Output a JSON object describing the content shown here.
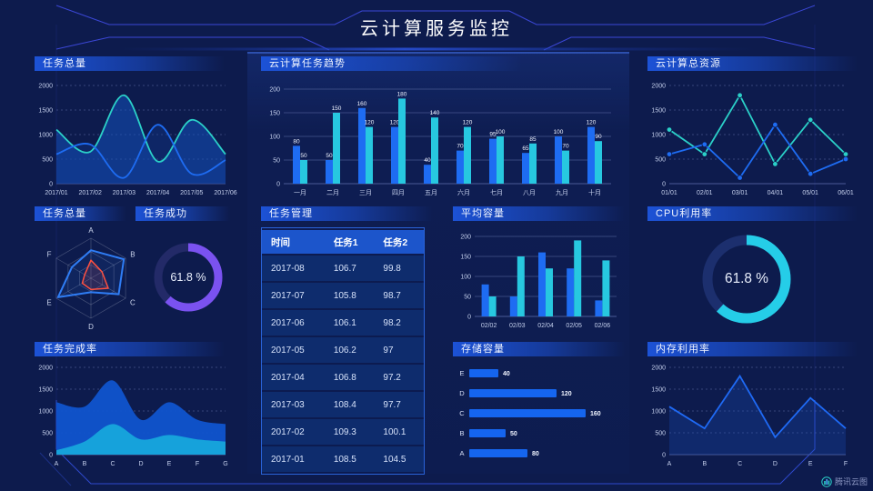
{
  "title": "云计算服务监控",
  "watermark": {
    "label": "腾讯云图"
  },
  "colors": {
    "background": "#0d1b4d",
    "header_bar": "#1c52d6",
    "blue": "#1e6cf2",
    "cyan": "#27c8e0",
    "teal": "#2bd0c8",
    "purple": "#7a52f0",
    "red": "#ff5040",
    "frame": "#3b47d6",
    "axis_text": "#c4cfec"
  },
  "panels": {
    "task_total": {
      "title": "任务总量"
    },
    "trend": {
      "title": "云计算任务趋势"
    },
    "resources": {
      "title": "云计算总资源"
    },
    "task_total_radar": {
      "title": "任务总量"
    },
    "task_success": {
      "title": "任务成功"
    },
    "task_mgmt": {
      "title": "任务管理"
    },
    "avg_capacity": {
      "title": "平均容量"
    },
    "cpu": {
      "title": "CPU利用率"
    },
    "completion": {
      "title": "任务完成率"
    },
    "storage": {
      "title": "存储容量"
    },
    "memory": {
      "title": "内存利用率"
    }
  },
  "chart_data": [
    {
      "id": "task-total-curve",
      "type": "area",
      "title": "任务总量",
      "smooth": true,
      "categories": [
        "2017/01",
        "2017/02",
        "2017/03",
        "2017/04",
        "2017/05",
        "2017/06"
      ],
      "series": [
        {
          "color": "#2bd0c8",
          "fill": "rgba(20,80,190,0.55)",
          "values": [
            1100,
            650,
            1800,
            450,
            1300,
            600
          ]
        },
        {
          "color": "#1e6cf2",
          "fill": "rgba(18,60,150,0.35)",
          "values": [
            600,
            800,
            120,
            1200,
            200,
            480
          ]
        }
      ],
      "ylim": [
        0,
        2000
      ],
      "yticks": [
        0,
        500,
        1000,
        1500,
        2000
      ],
      "grid": "dashed"
    },
    {
      "id": "trend-bars",
      "type": "bar",
      "title": "云计算任务趋势",
      "categories": [
        "一月",
        "二月",
        "三月",
        "四月",
        "五月",
        "六月",
        "七月",
        "八月",
        "九月",
        "十月"
      ],
      "series": [
        {
          "color": "#1e6cf2",
          "values": [
            80,
            50,
            160,
            120,
            40,
            70,
            95,
            65,
            100,
            120
          ]
        },
        {
          "color": "#27c8e0",
          "values": [
            50,
            150,
            120,
            180,
            140,
            120,
            100,
            85,
            70,
            90
          ]
        }
      ],
      "ylim": [
        0,
        200
      ],
      "yticks": [
        0,
        50,
        100,
        150,
        200
      ],
      "grid": "solid",
      "value_labels": true
    },
    {
      "id": "resource-lines",
      "type": "line",
      "title": "云计算总资源",
      "categories": [
        "01/01",
        "02/01",
        "03/01",
        "04/01",
        "05/01",
        "06/01"
      ],
      "series": [
        {
          "color": "#2bd0c8",
          "values": [
            1100,
            600,
            1800,
            400,
            1300,
            600
          ],
          "markers": true
        },
        {
          "color": "#1e6cf2",
          "values": [
            600,
            800,
            120,
            1200,
            200,
            500
          ],
          "markers": true
        }
      ],
      "ylim": [
        0,
        2000
      ],
      "yticks": [
        0,
        500,
        1000,
        1500,
        2000
      ],
      "grid": "dashed"
    },
    {
      "id": "task-radar",
      "type": "radar",
      "title": "任务总量",
      "categories": [
        "A",
        "B",
        "C",
        "D",
        "E",
        "F"
      ],
      "max": 100,
      "series": [
        {
          "color": "#2f7df5",
          "values": [
            70,
            95,
            80,
            35,
            95,
            55
          ]
        },
        {
          "color": "#ff5040",
          "values": [
            45,
            32,
            50,
            28,
            25,
            18
          ]
        }
      ]
    },
    {
      "id": "success-gauge",
      "type": "donut",
      "title": "任务成功",
      "value": 61.8,
      "display": "61.8 %",
      "color": "#7a52f0",
      "track": "#232a68"
    },
    {
      "id": "task-table",
      "type": "table",
      "title": "任务管理",
      "columns": [
        "时间",
        "任务1",
        "任务2"
      ],
      "rows": [
        [
          "2017-08",
          "106.7",
          "99.8"
        ],
        [
          "2017-07",
          "105.8",
          "98.7"
        ],
        [
          "2017-06",
          "106.1",
          "98.2"
        ],
        [
          "2017-05",
          "106.2",
          "97"
        ],
        [
          "2017-04",
          "106.8",
          "97.2"
        ],
        [
          "2017-03",
          "108.4",
          "97.7"
        ],
        [
          "2017-02",
          "109.3",
          "100.1"
        ],
        [
          "2017-01",
          "108.5",
          "104.5"
        ]
      ]
    },
    {
      "id": "avg-capacity-bars",
      "type": "bar",
      "title": "平均容量",
      "categories": [
        "02/02",
        "02/03",
        "02/04",
        "02/05",
        "02/06"
      ],
      "series": [
        {
          "color": "#1e6cf2",
          "values": [
            80,
            50,
            160,
            120,
            40
          ]
        },
        {
          "color": "#27c8e0",
          "values": [
            50,
            150,
            120,
            190,
            140
          ]
        }
      ],
      "ylim": [
        0,
        200
      ],
      "yticks": [
        0,
        50,
        100,
        150,
        200
      ],
      "grid": "solid",
      "value_labels": false
    },
    {
      "id": "cpu-gauge",
      "type": "donut",
      "title": "CPU利用率",
      "value": 61.8,
      "display": "61.8 %",
      "color": "#25cde8",
      "track": "#1c2f6e"
    },
    {
      "id": "completion-area",
      "type": "area",
      "title": "任务完成率",
      "smooth": true,
      "categories": [
        "A",
        "B",
        "C",
        "D",
        "E",
        "F",
        "G"
      ],
      "series": [
        {
          "color": "#1d66e0",
          "fill": "rgba(16,84,205,0.95)",
          "values": [
            1200,
            1100,
            1700,
            800,
            1200,
            800,
            700
          ]
        },
        {
          "color": "#1fb4e8",
          "fill": "rgba(23,166,220,0.95)",
          "values": [
            100,
            300,
            700,
            350,
            450,
            350,
            300
          ]
        }
      ],
      "ylim": [
        0,
        2000
      ],
      "yticks": [
        0,
        500,
        1000,
        1500,
        2000
      ],
      "grid": "dashed"
    },
    {
      "id": "storage-hbars",
      "type": "hbar",
      "title": "存储容量",
      "categories": [
        "E",
        "D",
        "C",
        "B",
        "A"
      ],
      "values": [
        40,
        120,
        160,
        50,
        80
      ],
      "xmax": 170,
      "color": "#1565ef"
    },
    {
      "id": "memory-line",
      "type": "line",
      "title": "内存利用率",
      "categories": [
        "A",
        "B",
        "C",
        "D",
        "E",
        "F"
      ],
      "series": [
        {
          "color": "#1f6af5",
          "values": [
            1100,
            600,
            1800,
            400,
            1300,
            600
          ],
          "fill": "rgba(25,80,190,0.28)"
        }
      ],
      "ylim": [
        0,
        2000
      ],
      "yticks": [
        0,
        500,
        1000,
        1500,
        2000
      ],
      "grid": "dashed"
    }
  ]
}
